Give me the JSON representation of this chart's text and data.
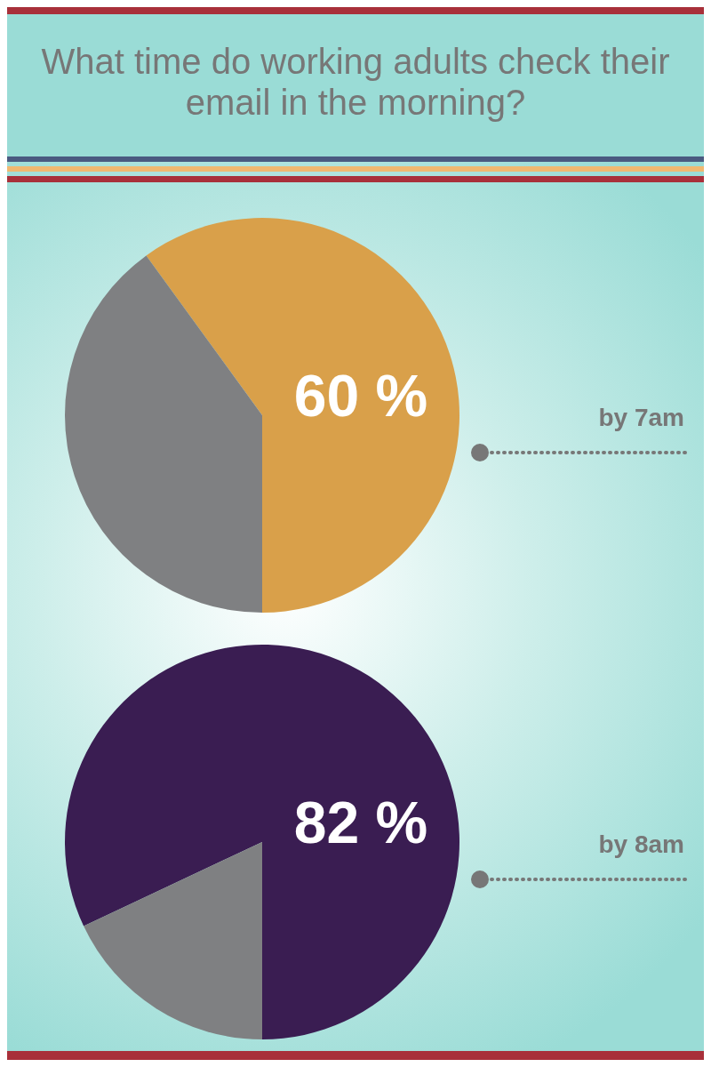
{
  "chart_data": [
    {
      "type": "pie",
      "title": "What time do working adults check their email in the morning?",
      "categories": [
        "by 7am",
        null
      ],
      "values": [
        60,
        40
      ],
      "colors": [
        "#d9a04a",
        "#7f8082"
      ],
      "value_labels": [
        "60 %",
        null
      ]
    },
    {
      "type": "pie",
      "categories": [
        "by 8am",
        null
      ],
      "values": [
        82,
        18
      ],
      "colors": [
        "#3a1d52",
        "#7f8082"
      ],
      "value_labels": [
        "82 %",
        null
      ]
    }
  ]
}
